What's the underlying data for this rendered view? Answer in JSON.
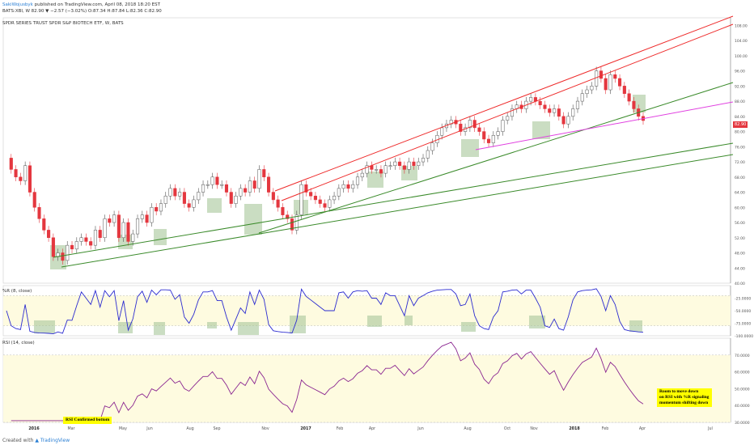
{
  "header": {
    "user": "SakiWojusbyk",
    "published": "published on TradingView.com, April 08, 2018 18:20 EST",
    "ohlc_line": "BATS:XBI, W  82.90 ▼ −2.57 (−3.02%) O:87.34 H:87.84 L:82.36 C:82.90",
    "title": "SPDR SERIES TRUST SPDR S&P BIOTECH ETF, W, BATS"
  },
  "price_badge": "82.90",
  "wr_panel": {
    "label": "%R (8, close)"
  },
  "rsi_panel": {
    "label": "RSI (14, close)"
  },
  "annotations": {
    "rsi_bottom": "RSI Confirmed bottom",
    "room_line1": "Room to move down",
    "room_line2": "on RSI with %R signaling",
    "room_line3": "momentum shifting down"
  },
  "footer": {
    "created_with": "Created with",
    "logo": "TradingView"
  },
  "colors": {
    "up": "#ffffff",
    "down": "#e4373f",
    "channel": "#ee2a2a",
    "trend": "#3a8a2a",
    "support": "#e040e0",
    "wr": "#2b2bd0",
    "rsi": "#8a2590",
    "band": "#fefbe0",
    "box": "#a6c79a"
  },
  "chart_data": [
    {
      "type": "candlestick",
      "title": "SPDR SERIES TRUST SPDR S&P BIOTECH ETF, W, BATS",
      "x_tick_labels": [
        "2016",
        "Mar",
        "May",
        "Jun",
        "Aug",
        "Sep",
        "Nov",
        "2017",
        "Feb",
        "Apr",
        "Jun",
        "Aug",
        "Oct",
        "Nov",
        "2018",
        "Feb",
        "Apr",
        "Jul"
      ],
      "y_tick_labels": [
        "40.00",
        "44.00",
        "48.00",
        "52.00",
        "56.00",
        "60.00",
        "64.00",
        "68.00",
        "72.00",
        "76.00",
        "80.00",
        "84.00",
        "88.00",
        "92.00",
        "96.00",
        "100.00",
        "104.00",
        "108.00"
      ],
      "ylim": [
        40,
        110
      ],
      "last_close": 82.9,
      "closes": [
        73,
        70,
        68,
        67,
        71,
        64,
        60,
        57,
        54,
        52,
        47,
        48,
        46,
        50,
        49,
        51,
        52,
        51,
        50,
        54,
        52,
        57,
        56,
        58,
        52,
        56,
        51,
        53,
        57,
        58,
        56,
        60,
        59,
        61,
        63,
        65,
        63,
        64,
        61,
        60,
        62,
        64,
        66,
        66,
        68,
        66,
        66,
        64,
        61,
        63,
        65,
        64,
        67,
        65,
        70,
        68,
        64,
        62,
        60,
        58,
        57,
        54,
        58,
        66,
        64,
        63,
        62,
        61,
        60,
        62,
        63,
        65,
        66,
        65,
        66,
        68,
        69,
        71,
        70,
        70,
        69,
        71,
        71,
        72,
        71,
        70,
        72,
        71,
        72,
        73,
        75,
        77,
        79,
        81,
        82,
        83,
        82,
        80,
        81,
        83,
        81,
        80,
        78,
        77,
        79,
        80,
        83,
        84,
        86,
        87,
        86,
        88,
        89,
        88,
        87,
        86,
        85,
        86,
        84,
        82,
        84,
        86,
        88,
        90,
        91,
        92,
        96,
        94,
        91,
        95,
        94,
        92,
        90,
        88,
        86,
        84,
        82.9
      ]
    },
    {
      "type": "line",
      "name": "%R (8, close)",
      "y_tick_labels": [
        "-25.0000",
        "-50.0000",
        "-75.0000",
        "-100.0000"
      ],
      "ylim": [
        -100,
        0
      ]
    },
    {
      "type": "line",
      "name": "RSI (14, close)",
      "y_tick_labels": [
        "70.0000",
        "60.0000",
        "50.0000",
        "40.0000",
        "30.0000"
      ],
      "ylim": [
        30,
        80
      ]
    }
  ]
}
